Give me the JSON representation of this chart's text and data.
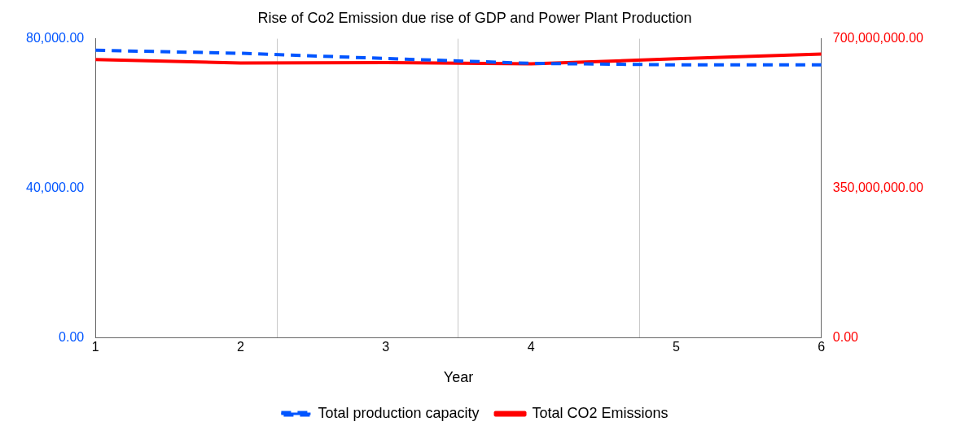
{
  "chart_data": {
    "type": "line",
    "title": "Rise of Co2 Emission due rise of GDP and Power Plant Production",
    "xlabel": "Year",
    "x": [
      1,
      2,
      3,
      4,
      5,
      6
    ],
    "xlim": [
      1,
      6
    ],
    "xticks": [
      1,
      2,
      {
        "value": 2.25,
        "label": null
      },
      3,
      {
        "value": 3.5,
        "label": null
      },
      4,
      {
        "value": 4.75,
        "label": null
      },
      5,
      6
    ],
    "ylim": [
      0,
      80000
    ],
    "yticks": [
      {
        "value": 0,
        "label": "0.00"
      },
      {
        "value": 40000,
        "label": "40,000.00"
      },
      {
        "value": 80000,
        "label": "80,000.00"
      }
    ],
    "y2lim": [
      0,
      700000000
    ],
    "y2ticks": [
      {
        "value": 0,
        "label": "0.00"
      },
      {
        "value": 350000000,
        "label": "350,000,000.00"
      },
      {
        "value": 700000000,
        "label": "700,000,000.00"
      }
    ],
    "series": [
      {
        "name": "Total CO2 Emissions",
        "color": "#ff0000",
        "axis": "y2",
        "line_style": "solid",
        "values": [
          651000000,
          643000000,
          644000000,
          641000000,
          653000000,
          664000000
        ]
      },
      {
        "name": "Total production capacity",
        "color": "#0055ff",
        "axis": "y",
        "line_style": "dashed",
        "values": [
          76900,
          76100,
          74700,
          73400,
          73000,
          73000
        ]
      }
    ],
    "grid": "x",
    "legend": "bottom",
    "marker": "none"
  }
}
